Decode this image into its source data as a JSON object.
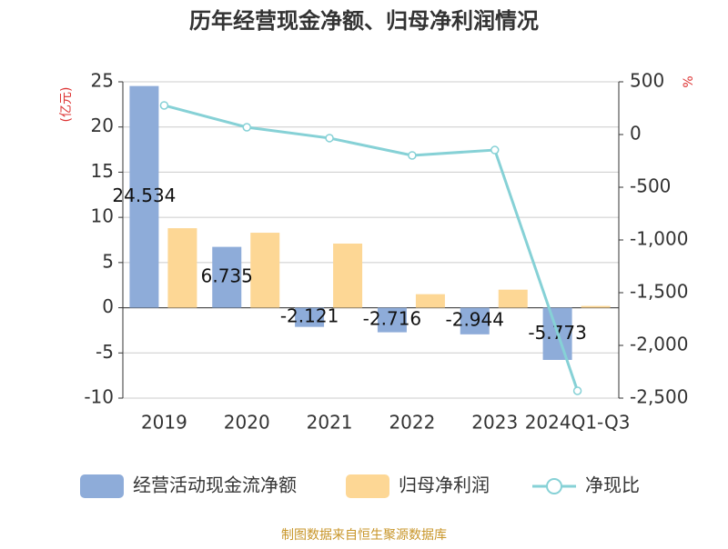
{
  "chart_data": {
    "type": "bar_line",
    "title": "历年经营现金净额、归母净利润情况",
    "y_label": "(亿元)",
    "y2_label": "%",
    "source": "制图数据来自恒生聚源数据库",
    "categories": [
      "2019",
      "2020",
      "2021",
      "2022",
      "2023",
      "2024Q1-Q3"
    ],
    "series": [
      {
        "name": "经营活动现金流净额",
        "color": "#8eacd9",
        "type": "bar",
        "values": [
          24.534,
          6.735,
          -2.121,
          -2.716,
          -2.944,
          -5.773
        ]
      },
      {
        "name": "归母净利润",
        "color": "#fdd795",
        "type": "bar",
        "values": [
          8.8,
          8.3,
          7.1,
          1.5,
          2.0,
          0.2
        ]
      },
      {
        "name": "净现比",
        "color": "#86d1d6",
        "type": "line",
        "axis": "y2",
        "values": [
          276,
          69,
          -34,
          -198,
          -147,
          -2431
        ]
      }
    ],
    "ylim": [
      -10,
      25
    ],
    "yticks": [
      -10,
      -5,
      0,
      5,
      10,
      15,
      20,
      25
    ],
    "y2lim": [
      -2500,
      500
    ],
    "y2ticks": [
      {
        "value": -2500,
        "label": "-2,500"
      },
      {
        "value": -2000,
        "label": "-2,000"
      },
      {
        "value": -1500,
        "label": "-1,500"
      },
      {
        "value": -1000,
        "label": "-1,000"
      },
      -500,
      0,
      500
    ],
    "grid": true
  }
}
